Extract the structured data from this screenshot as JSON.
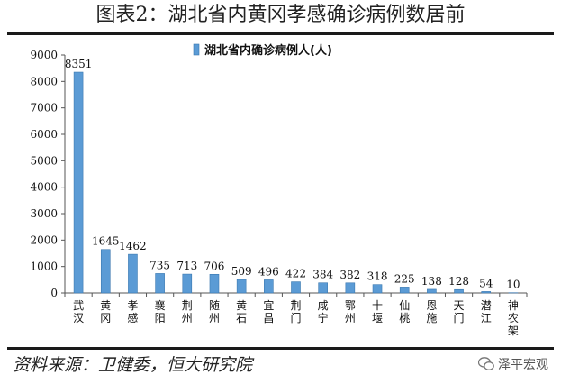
{
  "title": "图表2：湖北省内黄冈孝感确诊病例数居前",
  "source": "资料来源：卫健委，恒大研究院",
  "watermark": "泽平宏观",
  "icons": {
    "watermark": "wechat-icon"
  },
  "colors": {
    "bar": "#5b9bd5",
    "bar_edge": "#3a78b0",
    "rule": "#1a1a1a"
  },
  "chart_data": {
    "type": "bar",
    "categories": [
      "武汉",
      "黄冈",
      "孝感",
      "襄阳",
      "荆州",
      "随州",
      "黄石",
      "宜昌",
      "荆门",
      "咸宁",
      "鄂州",
      "十堰",
      "仙桃",
      "恩施",
      "天门",
      "潜江",
      "神农架"
    ],
    "series": [
      {
        "name": "湖北省内确诊病例人(人)",
        "values": [
          8351,
          1645,
          1462,
          735,
          713,
          706,
          509,
          496,
          422,
          384,
          382,
          318,
          225,
          138,
          128,
          54,
          10
        ]
      }
    ],
    "ylim": [
      0,
      9000
    ],
    "yticks": [
      0,
      1000,
      2000,
      3000,
      4000,
      5000,
      6000,
      7000,
      8000,
      9000
    ],
    "data_labels": true,
    "legend": "top-center",
    "grid": false
  }
}
